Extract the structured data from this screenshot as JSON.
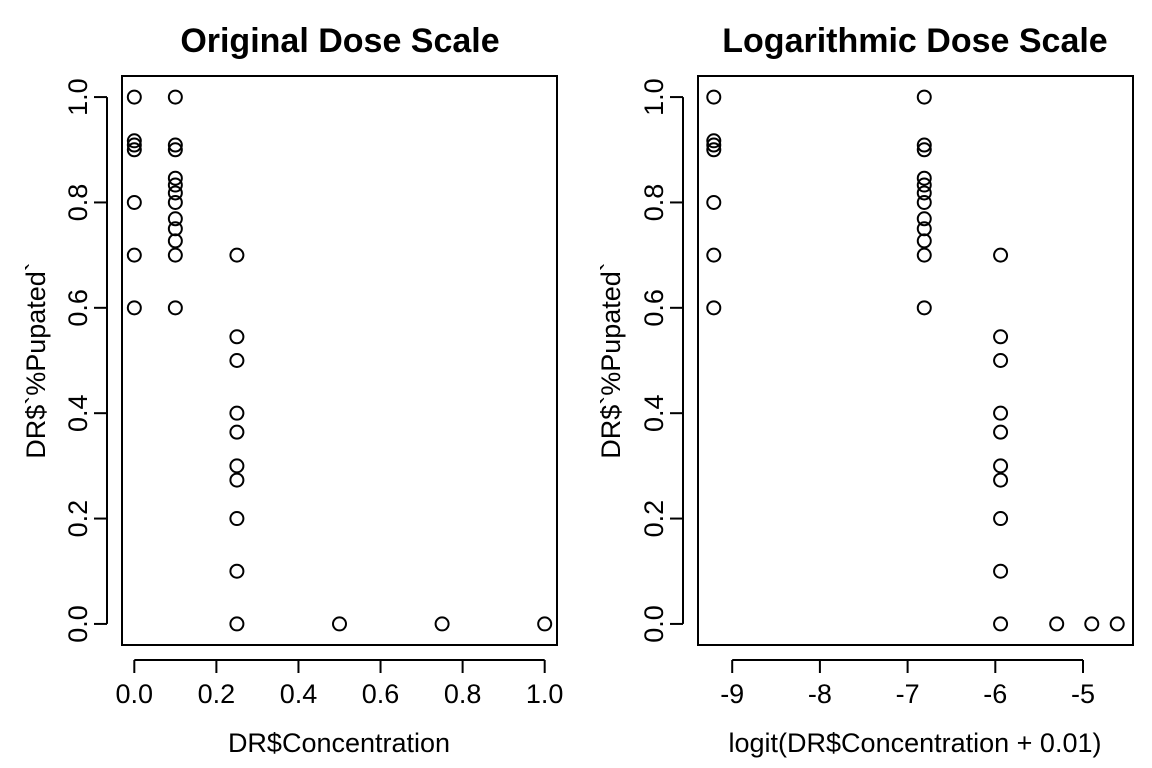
{
  "chart_data": [
    {
      "type": "scatter",
      "title": "Original Dose Scale",
      "xlabel": "DR$Concentration",
      "ylabel": "DR$`%Pupated`",
      "xlim": [
        -0.03,
        1.03
      ],
      "ylim": [
        -0.04,
        1.04
      ],
      "xticks": [
        0.0,
        0.2,
        0.4,
        0.6,
        0.8,
        1.0
      ],
      "xtick_labels": [
        "0.0",
        "0.2",
        "0.4",
        "0.6",
        "0.8",
        "1.0"
      ],
      "yticks": [
        0.0,
        0.2,
        0.4,
        0.6,
        0.8,
        1.0
      ],
      "ytick_labels": [
        "0.0",
        "0.2",
        "0.4",
        "0.6",
        "0.8",
        "1.0"
      ],
      "grid": false,
      "points": [
        [
          0.0,
          1.0
        ],
        [
          0.0,
          0.917
        ],
        [
          0.0,
          0.909
        ],
        [
          0.0,
          0.9
        ],
        [
          0.0,
          0.8
        ],
        [
          0.0,
          0.7
        ],
        [
          0.0,
          0.6
        ],
        [
          0.1,
          1.0
        ],
        [
          0.1,
          0.909
        ],
        [
          0.1,
          0.9
        ],
        [
          0.1,
          0.846
        ],
        [
          0.1,
          0.833
        ],
        [
          0.1,
          0.818
        ],
        [
          0.1,
          0.8
        ],
        [
          0.1,
          0.769
        ],
        [
          0.1,
          0.75
        ],
        [
          0.1,
          0.727
        ],
        [
          0.1,
          0.7
        ],
        [
          0.1,
          0.6
        ],
        [
          0.25,
          0.7
        ],
        [
          0.25,
          0.545
        ],
        [
          0.25,
          0.5
        ],
        [
          0.25,
          0.4
        ],
        [
          0.25,
          0.364
        ],
        [
          0.25,
          0.3
        ],
        [
          0.25,
          0.273
        ],
        [
          0.25,
          0.2
        ],
        [
          0.25,
          0.1
        ],
        [
          0.25,
          0.0
        ],
        [
          0.5,
          0.0
        ],
        [
          0.75,
          0.0
        ],
        [
          1.0,
          0.0
        ]
      ]
    },
    {
      "type": "scatter",
      "title": "Logarithmic Dose Scale",
      "xlabel": "logit(DR$Concentration + 0.01)",
      "ylabel": "DR$`%Pupated`",
      "xlim": [
        -9.39,
        -4.43
      ],
      "ylim": [
        -0.04,
        1.04
      ],
      "xticks": [
        -9,
        -8,
        -7,
        -6,
        -5
      ],
      "xtick_labels": [
        "-9",
        "-8",
        "-7",
        "-6",
        "-5"
      ],
      "yticks": [
        0.0,
        0.2,
        0.4,
        0.6,
        0.8,
        1.0
      ],
      "ytick_labels": [
        "0.0",
        "0.2",
        "0.4",
        "0.6",
        "0.8",
        "1.0"
      ],
      "grid": false,
      "points": [
        [
          -9.21,
          1.0
        ],
        [
          -9.21,
          0.917
        ],
        [
          -9.21,
          0.909
        ],
        [
          -9.21,
          0.9
        ],
        [
          -9.21,
          0.8
        ],
        [
          -9.21,
          0.7
        ],
        [
          -9.21,
          0.6
        ],
        [
          -6.81,
          1.0
        ],
        [
          -6.81,
          0.909
        ],
        [
          -6.81,
          0.9
        ],
        [
          -6.81,
          0.846
        ],
        [
          -6.81,
          0.833
        ],
        [
          -6.81,
          0.818
        ],
        [
          -6.81,
          0.8
        ],
        [
          -6.81,
          0.769
        ],
        [
          -6.81,
          0.75
        ],
        [
          -6.81,
          0.727
        ],
        [
          -6.81,
          0.7
        ],
        [
          -6.81,
          0.6
        ],
        [
          -5.94,
          0.7
        ],
        [
          -5.94,
          0.545
        ],
        [
          -5.94,
          0.5
        ],
        [
          -5.94,
          0.4
        ],
        [
          -5.94,
          0.364
        ],
        [
          -5.94,
          0.3
        ],
        [
          -5.94,
          0.273
        ],
        [
          -5.94,
          0.2
        ],
        [
          -5.94,
          0.1
        ],
        [
          -5.94,
          0.0
        ],
        [
          -5.3,
          0.0
        ],
        [
          -4.9,
          0.0
        ],
        [
          -4.61,
          0.0
        ]
      ]
    }
  ]
}
